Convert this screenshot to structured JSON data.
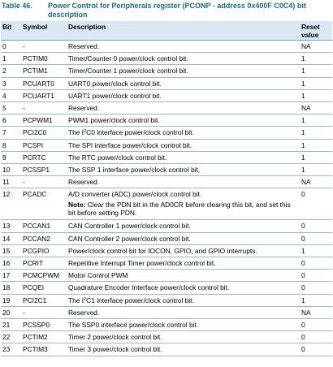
{
  "caption": {
    "number": "Table 46.",
    "title": "Power Control for Peripherals register (PCONP - address 0x400F C0C4) bit description"
  },
  "headers": {
    "bit": "Bit",
    "symbol": "Symbol",
    "description": "Description",
    "reset": "Reset value"
  },
  "rows": [
    {
      "bit": "0",
      "symbol": "-",
      "description": "Reserved.",
      "reset": "NA"
    },
    {
      "bit": "1",
      "symbol": "PCTIM0",
      "description": "Timer/Counter 0 power/clock control bit.",
      "reset": "1"
    },
    {
      "bit": "2",
      "symbol": "PCTIM1",
      "description": "Timer/Counter 1 power/clock control bit.",
      "reset": "1"
    },
    {
      "bit": "3",
      "symbol": "PCUART0",
      "description": "UART0 power/clock control bit.",
      "reset": "1"
    },
    {
      "bit": "4",
      "symbol": "PCUART1",
      "description": "UART1 power/clock control bit.",
      "reset": "1"
    },
    {
      "bit": "5",
      "symbol": "-",
      "description": "Reserved.",
      "reset": "NA"
    },
    {
      "bit": "6",
      "symbol": "PCPWM1",
      "description": "PWM1 power/clock control bit.",
      "reset": "1"
    },
    {
      "bit": "7",
      "symbol": "PCI2C0",
      "desc_pre": "The I",
      "desc_sup": "2",
      "desc_post": "C0 interface power/clock control bit.",
      "reset": "1"
    },
    {
      "bit": "8",
      "symbol": "PCSPI",
      "description": "The SPI interface power/clock control bit.",
      "reset": "1"
    },
    {
      "bit": "9",
      "symbol": "PCRTC",
      "description": "The RTC power/clock control bit.",
      "reset": "1"
    },
    {
      "bit": "10",
      "symbol": "PCSSP1",
      "description": "The SSP 1 interface power/clock control bit.",
      "reset": "1"
    },
    {
      "bit": "11",
      "symbol": "-",
      "description": "Reserved.",
      "reset": "NA"
    },
    {
      "bit": "12",
      "symbol": "PCADC",
      "description": "A/D converter (ADC) power/clock control bit.",
      "note_label": "Note:",
      "note_text": "Clear the PDN bit in the AD0CR before clearing this bit, and set this bit before setting PDN.",
      "reset": "0"
    },
    {
      "bit": "13",
      "symbol": "PCCAN1",
      "description": "CAN Controller 1 power/clock control bit.",
      "reset": "0"
    },
    {
      "bit": "14",
      "symbol": "PCCAN2",
      "description": "CAN Controller 2 power/clock control bit.",
      "reset": "0"
    },
    {
      "bit": "15",
      "symbol": "PCGPIO",
      "description": "Power/clock control bit for IOCON, GPIO, and GPIO interrupts.",
      "reset": "1"
    },
    {
      "bit": "16",
      "symbol": "PCRIT",
      "description": "Repetitive Interrupt Timer power/clock control bit.",
      "reset": "0"
    },
    {
      "bit": "17",
      "symbol": "PCMCPWM",
      "description": "Motor Control PWM",
      "reset": "0"
    },
    {
      "bit": "18",
      "symbol": "PCQEI",
      "description": "Quadrature Encoder Interface power/clock control bit.",
      "reset": "0"
    },
    {
      "bit": "19",
      "symbol": "PCI2C1",
      "desc_pre": "The I",
      "desc_sup": "2",
      "desc_post": "C1 interface power/clock control bit.",
      "reset": "1"
    },
    {
      "bit": "20",
      "symbol": "-",
      "description": "Reserved.",
      "reset": "NA"
    },
    {
      "bit": "21",
      "symbol": "PCSSP0",
      "description": "The SSP0 interface power/clock control bit.",
      "reset": "0"
    },
    {
      "bit": "22",
      "symbol": "PCTIM2",
      "description": "Timer 2 power/clock control bit.",
      "reset": "0"
    },
    {
      "bit": "23",
      "symbol": "PCTIM3",
      "description": "Timer 3 power/clock control bit.",
      "reset": "0"
    }
  ]
}
